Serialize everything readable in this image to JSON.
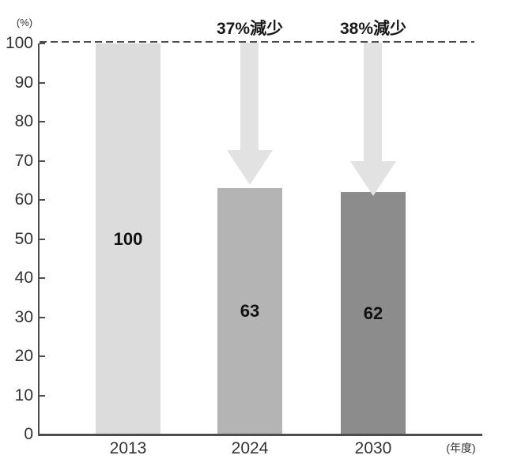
{
  "chart_data": {
    "type": "bar",
    "title": "",
    "unit_y": "(%)",
    "unit_x": "(年度)",
    "categories": [
      "2013",
      "2024",
      "2030"
    ],
    "values": [
      100,
      63,
      62
    ],
    "value_labels": [
      "100",
      "63",
      "62"
    ],
    "bar_colors": [
      "#dcdcdc",
      "#b4b4b4",
      "#8c8c8c"
    ],
    "ylim": [
      0,
      100
    ],
    "yticks": [
      0,
      10,
      20,
      30,
      40,
      50,
      60,
      70,
      80,
      90,
      100
    ],
    "grid": "off",
    "legend": "none",
    "baseline": {
      "value": 100,
      "style": "dashed"
    },
    "annotations": [
      {
        "text": "37%減少",
        "category": "2024"
      },
      {
        "text": "38%減少",
        "category": "2030"
      }
    ],
    "colors": {
      "arrow": "#e2e2e2",
      "axis": "#4d4d4d",
      "tick_text": "#333333",
      "value_text": "#111111"
    }
  }
}
